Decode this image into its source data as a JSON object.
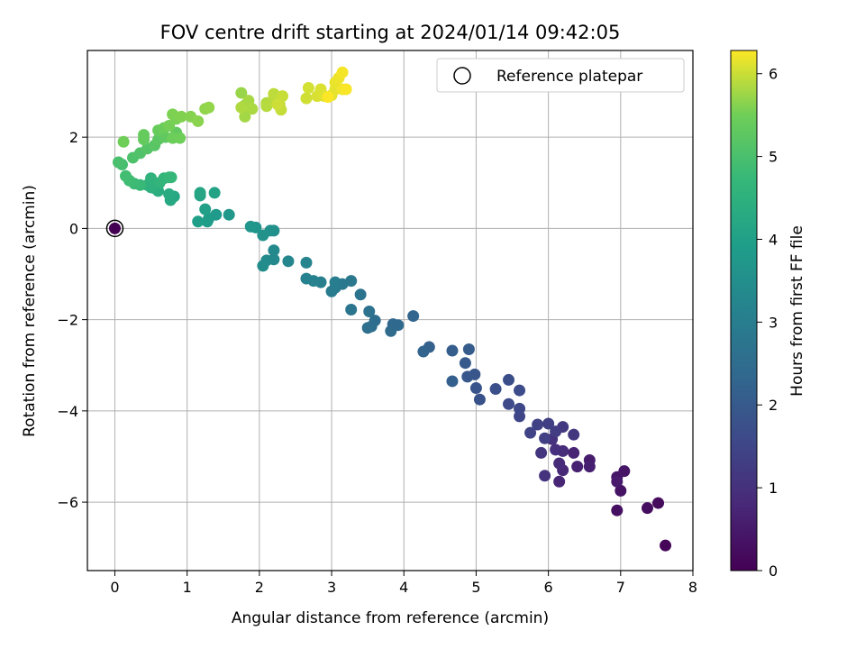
{
  "chart_data": {
    "type": "scatter",
    "title": "FOV centre drift starting at 2024/01/14 09:42:05",
    "xlabel": "Angular distance from reference (arcmin)",
    "ylabel": "Rotation from reference (arcmin)",
    "xlim": [
      -0.38,
      8.0
    ],
    "ylim": [
      -7.5,
      3.9
    ],
    "xticks": [
      0,
      1,
      2,
      3,
      4,
      5,
      6,
      7,
      8
    ],
    "yticks": [
      2,
      0,
      -2,
      -4,
      -6
    ],
    "grid": true,
    "legend": {
      "position": "top-right",
      "entries": [
        "Reference platepar"
      ]
    },
    "reference_point": {
      "x": 0,
      "y": 0,
      "label": "Reference platepar"
    },
    "colorbar": {
      "label": "Hours from first FF file",
      "colormap": "viridis",
      "range": [
        0,
        6.28
      ],
      "ticks": [
        0,
        1,
        2,
        3,
        4,
        5,
        6
      ]
    },
    "points": [
      [
        0.0,
        0.0,
        0.0
      ],
      [
        7.62,
        -6.95,
        0.1
      ],
      [
        7.52,
        -6.02,
        0.2
      ],
      [
        7.37,
        -6.13,
        0.25
      ],
      [
        6.95,
        -6.18,
        0.3
      ],
      [
        7.0,
        -5.75,
        0.35
      ],
      [
        7.05,
        -5.32,
        0.4
      ],
      [
        6.95,
        -5.45,
        0.45
      ],
      [
        6.95,
        -5.55,
        0.5
      ],
      [
        6.57,
        -5.08,
        0.55
      ],
      [
        6.57,
        -5.22,
        0.6
      ],
      [
        6.4,
        -5.22,
        0.65
      ],
      [
        6.35,
        -4.92,
        0.7
      ],
      [
        6.15,
        -5.55,
        0.75
      ],
      [
        6.2,
        -5.3,
        0.8
      ],
      [
        6.15,
        -5.15,
        0.85
      ],
      [
        6.2,
        -4.88,
        0.9
      ],
      [
        6.1,
        -4.85,
        0.95
      ],
      [
        6.05,
        -4.62,
        1.0
      ],
      [
        5.95,
        -5.42,
        1.05
      ],
      [
        5.9,
        -4.92,
        1.1
      ],
      [
        6.35,
        -4.52,
        1.15
      ],
      [
        6.2,
        -4.35,
        1.2
      ],
      [
        6.1,
        -4.45,
        1.25
      ],
      [
        6.0,
        -4.28,
        1.3
      ],
      [
        5.95,
        -4.6,
        1.35
      ],
      [
        5.85,
        -4.3,
        1.4
      ],
      [
        5.75,
        -4.48,
        1.45
      ],
      [
        5.6,
        -4.12,
        1.5
      ],
      [
        5.6,
        -3.95,
        1.55
      ],
      [
        5.45,
        -3.85,
        1.6
      ],
      [
        5.6,
        -3.55,
        1.65
      ],
      [
        5.45,
        -3.32,
        1.7
      ],
      [
        5.27,
        -3.52,
        1.75
      ],
      [
        5.05,
        -3.75,
        1.8
      ],
      [
        5.0,
        -3.5,
        1.85
      ],
      [
        4.98,
        -3.2,
        1.9
      ],
      [
        4.88,
        -3.25,
        1.95
      ],
      [
        4.85,
        -2.95,
        2.0
      ],
      [
        4.9,
        -2.65,
        2.05
      ],
      [
        4.67,
        -2.68,
        2.1
      ],
      [
        4.67,
        -3.35,
        2.15
      ],
      [
        4.35,
        -2.6,
        2.2
      ],
      [
        4.27,
        -2.7,
        2.25
      ],
      [
        4.13,
        -1.92,
        2.3
      ],
      [
        3.85,
        -2.1,
        2.35
      ],
      [
        3.92,
        -2.12,
        2.4
      ],
      [
        3.82,
        -2.25,
        2.45
      ],
      [
        3.6,
        -2.02,
        2.5
      ],
      [
        3.55,
        -2.15,
        2.55
      ],
      [
        3.5,
        -2.18,
        2.6
      ],
      [
        3.52,
        -1.82,
        2.65
      ],
      [
        3.4,
        -1.45,
        2.7
      ],
      [
        3.27,
        -1.78,
        2.75
      ],
      [
        3.27,
        -1.15,
        2.8
      ],
      [
        3.15,
        -1.22,
        2.85
      ],
      [
        3.05,
        -1.3,
        2.9
      ],
      [
        3.0,
        -1.38,
        2.95
      ],
      [
        3.05,
        -1.18,
        3.0
      ],
      [
        2.85,
        -1.18,
        3.05
      ],
      [
        2.75,
        -1.15,
        3.1
      ],
      [
        2.65,
        -1.1,
        3.15
      ],
      [
        2.65,
        -0.75,
        3.2
      ],
      [
        2.4,
        -0.72,
        3.25
      ],
      [
        2.2,
        -0.68,
        3.3
      ],
      [
        2.2,
        -0.48,
        3.35
      ],
      [
        2.1,
        -0.7,
        3.4
      ],
      [
        2.05,
        -0.82,
        3.45
      ],
      [
        2.2,
        -0.05,
        3.5
      ],
      [
        2.15,
        -0.05,
        3.55
      ],
      [
        2.05,
        -0.15,
        3.6
      ],
      [
        1.95,
        0.02,
        3.65
      ],
      [
        1.88,
        0.04,
        3.7
      ],
      [
        1.58,
        0.3,
        3.75
      ],
      [
        1.4,
        0.3,
        3.8
      ],
      [
        1.3,
        0.22,
        3.85
      ],
      [
        1.28,
        0.15,
        3.9
      ],
      [
        1.15,
        0.15,
        3.95
      ],
      [
        1.25,
        0.42,
        4.0
      ],
      [
        1.38,
        0.78,
        4.05
      ],
      [
        1.18,
        0.72,
        4.1
      ],
      [
        1.18,
        0.78,
        4.15
      ],
      [
        0.82,
        0.7,
        4.2
      ],
      [
        0.77,
        0.62,
        4.25
      ],
      [
        0.75,
        0.75,
        4.3
      ],
      [
        0.6,
        0.82,
        4.35
      ],
      [
        0.55,
        0.88,
        4.4
      ],
      [
        0.5,
        0.9,
        4.45
      ],
      [
        0.45,
        0.95,
        4.5
      ],
      [
        0.5,
        1.1,
        4.55
      ],
      [
        0.62,
        1.0,
        4.6
      ],
      [
        0.68,
        1.1,
        4.65
      ],
      [
        0.75,
        1.12,
        4.7
      ],
      [
        0.78,
        1.12,
        4.72
      ],
      [
        0.35,
        0.95,
        4.75
      ],
      [
        0.27,
        0.98,
        4.8
      ],
      [
        0.2,
        1.05,
        4.85
      ],
      [
        0.15,
        1.15,
        4.9
      ],
      [
        0.1,
        1.4,
        4.95
      ],
      [
        0.05,
        1.45,
        5.0
      ],
      [
        0.25,
        1.55,
        5.05
      ],
      [
        0.35,
        1.65,
        5.1
      ],
      [
        0.45,
        1.75,
        5.15
      ],
      [
        0.55,
        1.82,
        5.2
      ],
      [
        0.6,
        1.95,
        5.25
      ],
      [
        0.7,
        2.0,
        5.3
      ],
      [
        0.85,
        2.1,
        5.32
      ],
      [
        0.4,
        1.95,
        5.35
      ],
      [
        0.4,
        2.05,
        5.38
      ],
      [
        0.6,
        2.15,
        5.4
      ],
      [
        0.68,
        2.2,
        5.42
      ],
      [
        0.8,
        1.98,
        5.45
      ],
      [
        0.9,
        1.98,
        5.48
      ],
      [
        0.12,
        1.9,
        5.5
      ],
      [
        0.75,
        2.25,
        5.52
      ],
      [
        0.85,
        2.4,
        5.55
      ],
      [
        0.8,
        2.5,
        5.58
      ],
      [
        0.92,
        2.45,
        5.6
      ],
      [
        1.05,
        2.45,
        5.62
      ],
      [
        1.15,
        2.35,
        5.65
      ],
      [
        1.25,
        2.62,
        5.68
      ],
      [
        1.3,
        2.65,
        5.7
      ],
      [
        1.75,
        2.97,
        5.73
      ],
      [
        1.8,
        2.7,
        5.75
      ],
      [
        1.82,
        2.6,
        5.77
      ],
      [
        1.8,
        2.45,
        5.79
      ],
      [
        1.85,
        2.8,
        5.81
      ],
      [
        1.9,
        2.62,
        5.83
      ],
      [
        1.75,
        2.65,
        5.85
      ],
      [
        2.1,
        2.75,
        5.87
      ],
      [
        2.1,
        2.68,
        5.89
      ],
      [
        2.2,
        2.85,
        5.91
      ],
      [
        2.2,
        2.95,
        5.93
      ],
      [
        2.28,
        2.72,
        5.95
      ],
      [
        2.3,
        2.6,
        5.97
      ],
      [
        2.32,
        2.9,
        5.99
      ],
      [
        2.25,
        2.72,
        6.01
      ],
      [
        2.65,
        2.85,
        6.03
      ],
      [
        2.68,
        3.08,
        6.05
      ],
      [
        2.8,
        2.9,
        6.07
      ],
      [
        2.85,
        3.05,
        6.09
      ],
      [
        2.9,
        2.9,
        6.11
      ],
      [
        3.0,
        2.92,
        6.13
      ],
      [
        3.05,
        3.05,
        6.15
      ],
      [
        3.05,
        3.2,
        6.17
      ],
      [
        3.1,
        3.3,
        6.19
      ],
      [
        3.15,
        3.05,
        6.21
      ],
      [
        3.15,
        3.42,
        6.23
      ],
      [
        3.2,
        3.05,
        6.25
      ],
      [
        2.95,
        2.88,
        6.27
      ]
    ]
  }
}
